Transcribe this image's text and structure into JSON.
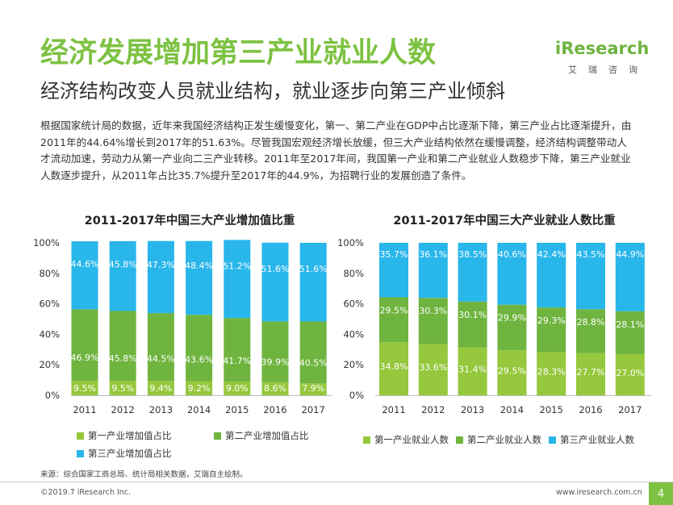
{
  "header": {
    "title": "经济发展增加第三产业就业人数",
    "subtitle": "经济结构改变人员就业结构，就业逐步向第三产业倾斜"
  },
  "logo": {
    "brand": "iResearch",
    "brand_cn": "艾瑞咨询"
  },
  "intro_text": "根据国家统计局的数据，近年来我国经济结构正发生缓慢变化，第一、第二产业在GDP中占比逐渐下降，第三产业占比逐渐提升，由2011年的44.64%增长到2017年的51.63%。尽管我国宏观经济增长放缓，但三大产业结构依然在缓慢调整，经济结构调整带动人才流动加速，劳动力从第一产业向二三产业转移。2011年至2017年间，我国第一产业和第二产业就业人数稳步下降，第三产业就业人数逐步提升，从2011年占比35.7%提升至2017年的44.9%，为招聘行业的发展创造了条件。",
  "colors": {
    "primary": "#95c83d",
    "secondary": "#6fb43f",
    "tertiary": "#29b6ea",
    "title_green": "#7dc242"
  },
  "chart_data": [
    {
      "type": "bar",
      "stacked": true,
      "title": "2011-2017年中国三大产业增加值比重",
      "categories": [
        "2011",
        "2012",
        "2013",
        "2014",
        "2015",
        "2016",
        "2017"
      ],
      "ylim": [
        0,
        100
      ],
      "yticks": [
        "0%",
        "20%",
        "40%",
        "60%",
        "80%",
        "100%"
      ],
      "series": [
        {
          "name": "第一产业增加值占比",
          "values": [
            9.5,
            9.5,
            9.4,
            9.2,
            9.0,
            8.6,
            7.9
          ],
          "labels": [
            "9.5%",
            "9.5%",
            "9.4%",
            "9.2%",
            "9.0%",
            "8.6%",
            "7.9%"
          ],
          "color": "#95c83d"
        },
        {
          "name": "第二产业增加值占比",
          "values": [
            46.9,
            45.8,
            44.5,
            43.6,
            41.7,
            39.9,
            40.5
          ],
          "labels": [
            "46.9%",
            "45.8%",
            "44.5%",
            "43.6%",
            "41.7%",
            "39.9%",
            "40.5%"
          ],
          "color": "#6fb43f"
        },
        {
          "name": "第三产业增加值占比",
          "values": [
            44.6,
            45.8,
            47.3,
            48.4,
            51.2,
            51.6,
            51.6
          ],
          "labels": [
            "44.6%",
            "45.8%",
            "47.3%",
            "48.4%",
            "51.2%",
            "51.6%",
            "51.6%"
          ],
          "color": "#29b6ea"
        }
      ]
    },
    {
      "type": "bar",
      "stacked": true,
      "title": "2011-2017年中国三大产业就业人数比重",
      "categories": [
        "2011",
        "2012",
        "2013",
        "2014",
        "2015",
        "2016",
        "2017"
      ],
      "ylim": [
        0,
        100
      ],
      "yticks": [
        "0%",
        "20%",
        "40%",
        "60%",
        "80%",
        "100%"
      ],
      "series": [
        {
          "name": "第一产业就业人数",
          "values": [
            34.8,
            33.6,
            31.4,
            29.5,
            28.3,
            27.7,
            27.0
          ],
          "labels": [
            "34.8%",
            "33.6%",
            "31.4%",
            "29.5%",
            "28.3%",
            "27.7%",
            "27.0%"
          ],
          "color": "#95c83d"
        },
        {
          "name": "第二产业就业人数",
          "values": [
            29.5,
            30.3,
            30.1,
            29.9,
            29.3,
            28.8,
            28.1
          ],
          "labels": [
            "29.5%",
            "30.3%",
            "30.1%",
            "29.9%",
            "29.3%",
            "28.8%",
            "28.1%"
          ],
          "color": "#6fb43f"
        },
        {
          "name": "第三产业就业人数",
          "values": [
            35.7,
            36.1,
            38.5,
            40.6,
            42.4,
            43.5,
            44.9
          ],
          "labels": [
            "35.7%",
            "36.1%",
            "38.5%",
            "40.6%",
            "42.4%",
            "43.5%",
            "44.9%"
          ],
          "color": "#29b6ea"
        }
      ]
    }
  ],
  "footer": {
    "source": "来源：综合国家工商总局、统计局相关数据，艾瑞自主绘制。",
    "copyright": "©2019.7 iResearch Inc.",
    "website": "www.iresearch.com.cn",
    "page_number": "4"
  }
}
